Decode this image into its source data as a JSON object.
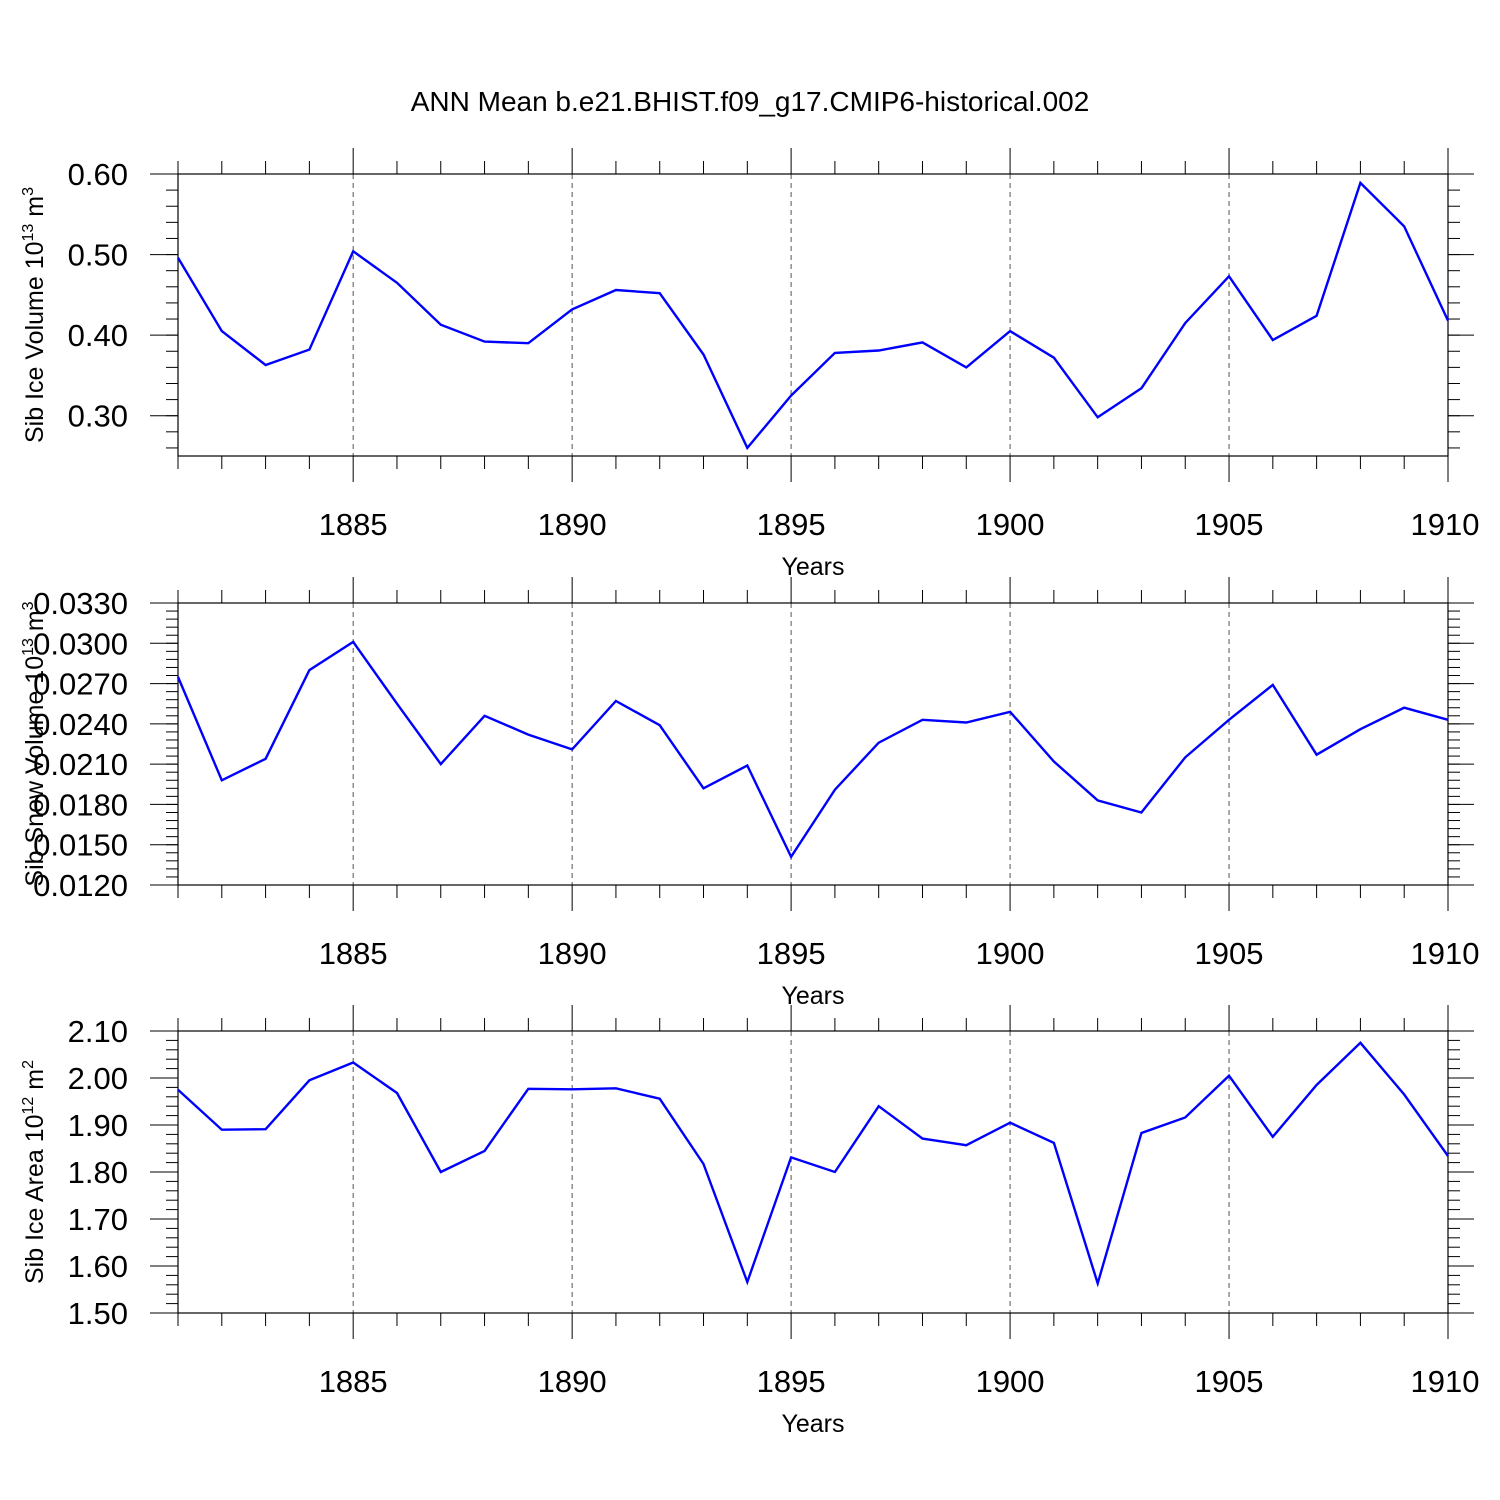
{
  "title": "ANN Mean b.e21.BHIST.f09_g17.CMIP6-historical.002",
  "colors": {
    "series": "#0000ff",
    "frame": "#000000",
    "grid": "#555555"
  },
  "chart_data": [
    {
      "type": "line",
      "title": "ANN Mean b.e21.BHIST.f09_g17.CMIP6-historical.002",
      "xlabel": "Years",
      "ylabel": "Sib Ice Volume 10",
      "ylabel_sup1": "13",
      "ylabel_unit": " m",
      "ylabel_sup2": "3",
      "xlim": [
        1881,
        1910
      ],
      "ylim": [
        0.25,
        0.6
      ],
      "yticks": [
        "0.30",
        "0.40",
        "0.50",
        "0.60"
      ],
      "ytick_values": [
        0.3,
        0.4,
        0.5,
        0.6
      ],
      "xticks": [
        "1885",
        "1890",
        "1895",
        "1900",
        "1905",
        "1910"
      ],
      "xtick_values": [
        1885,
        1890,
        1895,
        1900,
        1905,
        1910
      ],
      "grid": "x-dashed",
      "x": [
        1881,
        1882,
        1883,
        1884,
        1885,
        1886,
        1887,
        1888,
        1889,
        1890,
        1891,
        1892,
        1893,
        1894,
        1895,
        1896,
        1897,
        1898,
        1899,
        1900,
        1901,
        1902,
        1903,
        1904,
        1905,
        1906,
        1907,
        1908,
        1909,
        1910
      ],
      "values": [
        0.496,
        0.405,
        0.363,
        0.382,
        0.504,
        0.465,
        0.413,
        0.392,
        0.39,
        0.432,
        0.456,
        0.452,
        0.376,
        0.26,
        0.325,
        0.378,
        0.381,
        0.391,
        0.36,
        0.405,
        0.372,
        0.298,
        0.334,
        0.415,
        0.473,
        0.394,
        0.424,
        0.589,
        0.535,
        0.418
      ]
    },
    {
      "type": "line",
      "xlabel": "Years",
      "ylabel": "Sib Snow Volume 10",
      "ylabel_sup1": "13",
      "ylabel_unit": " m",
      "ylabel_sup2": "3",
      "xlim": [
        1881,
        1910
      ],
      "ylim": [
        0.012,
        0.033
      ],
      "yticks": [
        "0.0120",
        "0.0150",
        "0.0180",
        "0.0210",
        "0.0240",
        "0.0270",
        "0.0300",
        "0.0330"
      ],
      "ytick_values": [
        0.012,
        0.015,
        0.018,
        0.021,
        0.024,
        0.027,
        0.03,
        0.033
      ],
      "xticks": [
        "1885",
        "1890",
        "1895",
        "1900",
        "1905",
        "1910"
      ],
      "xtick_values": [
        1885,
        1890,
        1895,
        1900,
        1905,
        1910
      ],
      "grid": "x-dashed",
      "x": [
        1881,
        1882,
        1883,
        1884,
        1885,
        1886,
        1887,
        1888,
        1889,
        1890,
        1891,
        1892,
        1893,
        1894,
        1895,
        1896,
        1897,
        1898,
        1899,
        1900,
        1901,
        1902,
        1903,
        1904,
        1905,
        1906,
        1907,
        1908,
        1909,
        1910
      ],
      "values": [
        0.0275,
        0.0198,
        0.0214,
        0.028,
        0.0301,
        0.0255,
        0.021,
        0.0246,
        0.0232,
        0.0221,
        0.0257,
        0.0239,
        0.0192,
        0.0209,
        0.0141,
        0.0191,
        0.0226,
        0.0243,
        0.0241,
        0.0249,
        0.0212,
        0.0183,
        0.0174,
        0.0215,
        0.0243,
        0.0269,
        0.0217,
        0.0236,
        0.0252,
        0.0243
      ]
    },
    {
      "type": "line",
      "xlabel": "Years",
      "ylabel": "Sib Ice Area 10",
      "ylabel_sup1": "12",
      "ylabel_unit": " m",
      "ylabel_sup2": "2",
      "xlim": [
        1881,
        1910
      ],
      "ylim": [
        1.5,
        2.1
      ],
      "yticks": [
        "1.50",
        "1.60",
        "1.70",
        "1.80",
        "1.90",
        "2.00",
        "2.10"
      ],
      "ytick_values": [
        1.5,
        1.6,
        1.7,
        1.8,
        1.9,
        2.0,
        2.1
      ],
      "xticks": [
        "1885",
        "1890",
        "1895",
        "1900",
        "1905",
        "1910"
      ],
      "xtick_values": [
        1885,
        1890,
        1895,
        1900,
        1905,
        1910
      ],
      "grid": "x-dashed",
      "x": [
        1881,
        1882,
        1883,
        1884,
        1885,
        1886,
        1887,
        1888,
        1889,
        1890,
        1891,
        1892,
        1893,
        1894,
        1895,
        1896,
        1897,
        1898,
        1899,
        1900,
        1901,
        1902,
        1903,
        1904,
        1905,
        1906,
        1907,
        1908,
        1909,
        1910
      ],
      "values": [
        1.975,
        1.89,
        1.891,
        1.995,
        2.033,
        1.968,
        1.8,
        1.845,
        1.977,
        1.976,
        1.978,
        1.956,
        1.817,
        1.566,
        1.831,
        1.8,
        1.94,
        1.871,
        1.857,
        1.905,
        1.862,
        1.563,
        1.883,
        1.916,
        2.005,
        1.875,
        1.985,
        2.075,
        1.965,
        1.834
      ]
    }
  ]
}
